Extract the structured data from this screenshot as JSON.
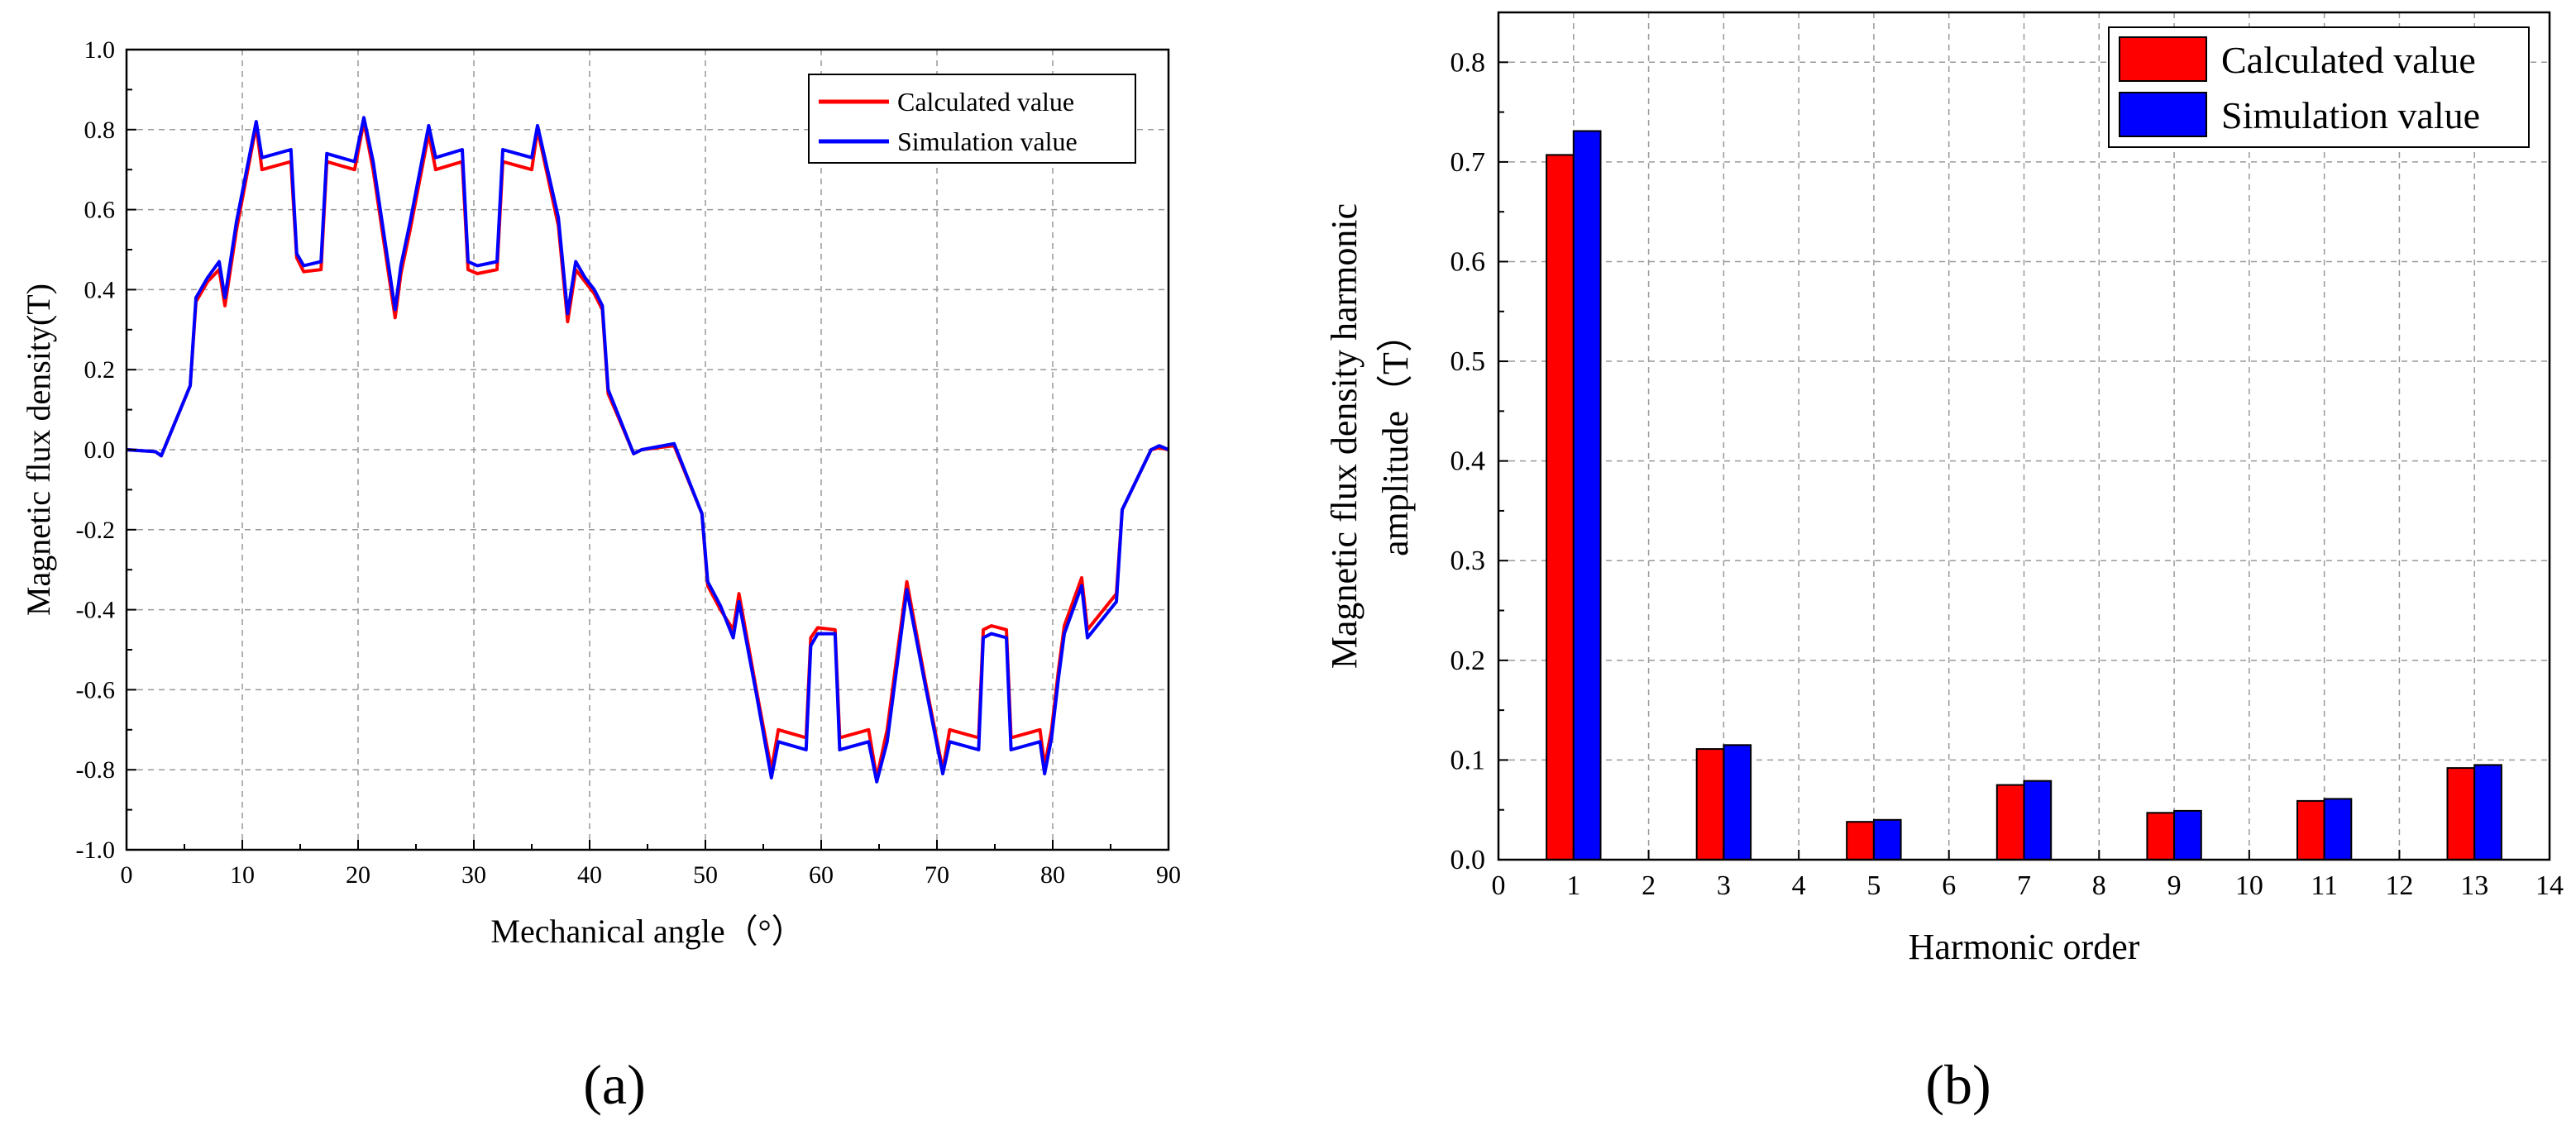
{
  "colors": {
    "calculated": "#ff0000",
    "simulation": "#0000ff",
    "grid": "#999999",
    "axis": "#000000"
  },
  "chart_data": [
    {
      "id": "a",
      "type": "line",
      "panel_label": "(a)",
      "xlabel": "Mechanical angle（°）",
      "ylabel": "Magnetic flux density(T)",
      "xlim": [
        0,
        90
      ],
      "ylim": [
        -1.0,
        1.0
      ],
      "xticks": [
        "0",
        "10",
        "20",
        "30",
        "40",
        "50",
        "60",
        "70",
        "80",
        "90"
      ],
      "yticks": [
        "1.0",
        "0.8",
        "0.6",
        "0.4",
        "0.2",
        "0.0",
        "-0.2",
        "-0.4",
        "-0.6",
        "-0.8",
        "-1.0"
      ],
      "grid": true,
      "legend_position": "top-right",
      "series": [
        {
          "name": "Calculated value",
          "color": "#ff0000",
          "x": [
            0,
            2.5,
            3,
            5.5,
            6,
            7,
            8,
            8.5,
            9.5,
            11.2,
            11.7,
            14.2,
            14.7,
            15.3,
            16.8,
            17.3,
            18.5,
            19.7,
            20.5,
            21.3,
            23.2,
            23.7,
            24.5,
            26.1,
            26.7,
            29,
            29.5,
            30.3,
            32,
            32.5,
            35,
            35.5,
            37.3,
            38.1,
            38.8,
            39.6,
            40.4,
            41.1,
            41.6,
            42.5,
            43.8,
            44.5,
            47.3,
            49.7,
            50.2,
            51.3,
            52.4,
            52.9,
            54.4,
            55.7,
            56.3,
            58.7,
            59.1,
            59.7,
            61.2,
            61.6,
            64.1,
            64.8,
            65.7,
            67.4,
            69,
            70.5,
            71.1,
            73.6,
            74,
            74.7,
            76,
            76.4,
            78.9,
            79.3,
            79.9,
            80.5,
            81,
            82.5,
            83,
            85.5,
            86,
            88.5,
            89.2,
            90
          ],
          "y": [
            0,
            -0.005,
            -0.015,
            0.16,
            0.37,
            0.42,
            0.45,
            0.36,
            0.55,
            0.81,
            0.7,
            0.72,
            0.48,
            0.445,
            0.45,
            0.72,
            0.71,
            0.7,
            0.82,
            0.7,
            0.33,
            0.44,
            0.55,
            0.79,
            0.7,
            0.72,
            0.45,
            0.44,
            0.45,
            0.72,
            0.7,
            0.8,
            0.56,
            0.32,
            0.45,
            0.42,
            0.39,
            0.35,
            0.14,
            0.08,
            -0.01,
            0.0,
            0.01,
            -0.16,
            -0.34,
            -0.4,
            -0.45,
            -0.36,
            -0.6,
            -0.8,
            -0.7,
            -0.72,
            -0.47,
            -0.445,
            -0.45,
            -0.72,
            -0.7,
            -0.82,
            -0.7,
            -0.33,
            -0.58,
            -0.8,
            -0.7,
            -0.72,
            -0.45,
            -0.44,
            -0.45,
            -0.72,
            -0.7,
            -0.79,
            -0.7,
            -0.55,
            -0.44,
            -0.32,
            -0.45,
            -0.36,
            -0.15,
            0.0,
            0.005,
            0
          ]
        },
        {
          "name": "Simulation value",
          "color": "#0000ff",
          "x": [
            0,
            2.5,
            3,
            5.5,
            6,
            7,
            8,
            8.5,
            9.5,
            11.2,
            11.7,
            14.2,
            14.7,
            15.3,
            16.8,
            17.3,
            18.5,
            19.7,
            20.5,
            21.3,
            23.2,
            23.7,
            24.5,
            26.1,
            26.7,
            29,
            29.5,
            30.3,
            32,
            32.5,
            35,
            35.5,
            37.3,
            38.1,
            38.8,
            39.6,
            40.4,
            41.1,
            41.6,
            42.5,
            43.8,
            44.5,
            47.3,
            49.7,
            50.2,
            51.3,
            52.4,
            52.9,
            54.4,
            55.7,
            56.3,
            58.7,
            59.1,
            59.7,
            61.2,
            61.6,
            64.1,
            64.8,
            65.7,
            67.4,
            69,
            70.5,
            71.1,
            73.6,
            74,
            74.7,
            76,
            76.4,
            78.9,
            79.3,
            79.9,
            80.5,
            81,
            82.5,
            83,
            85.5,
            86,
            88.5,
            89.2,
            90
          ],
          "y": [
            0,
            -0.005,
            -0.015,
            0.16,
            0.38,
            0.43,
            0.47,
            0.38,
            0.57,
            0.82,
            0.73,
            0.75,
            0.49,
            0.46,
            0.47,
            0.74,
            0.73,
            0.72,
            0.83,
            0.72,
            0.35,
            0.46,
            0.57,
            0.81,
            0.73,
            0.75,
            0.47,
            0.46,
            0.47,
            0.75,
            0.73,
            0.81,
            0.58,
            0.34,
            0.47,
            0.43,
            0.4,
            0.36,
            0.15,
            0.085,
            -0.01,
            0.0,
            0.015,
            -0.16,
            -0.33,
            -0.39,
            -0.47,
            -0.38,
            -0.61,
            -0.82,
            -0.73,
            -0.75,
            -0.49,
            -0.46,
            -0.46,
            -0.75,
            -0.73,
            -0.83,
            -0.73,
            -0.35,
            -0.59,
            -0.81,
            -0.73,
            -0.75,
            -0.47,
            -0.46,
            -0.47,
            -0.75,
            -0.73,
            -0.81,
            -0.72,
            -0.57,
            -0.46,
            -0.34,
            -0.47,
            -0.38,
            -0.15,
            0.0,
            0.01,
            0
          ]
        }
      ]
    },
    {
      "id": "b",
      "type": "bar",
      "panel_label": "(b)",
      "xlabel": "Harmonic order",
      "ylabel_lines": [
        "Magnetic flux density harmonic",
        "amplitude（T）"
      ],
      "xlim": [
        0,
        14
      ],
      "ylim": [
        0,
        0.85
      ],
      "xticks": [
        "0",
        "1",
        "2",
        "3",
        "4",
        "5",
        "6",
        "7",
        "8",
        "9",
        "10",
        "11",
        "12",
        "13",
        "14"
      ],
      "yticks": [
        "0.0",
        "0.1",
        "0.2",
        "0.3",
        "0.4",
        "0.5",
        "0.6",
        "0.7",
        "0.8"
      ],
      "grid": true,
      "legend_position": "top-right",
      "categories": [
        "1",
        "3",
        "5",
        "7",
        "9",
        "11",
        "13"
      ],
      "series": [
        {
          "name": "Calculated value",
          "color": "#ff0000",
          "values": [
            0.707,
            0.111,
            0.038,
            0.075,
            0.047,
            0.059,
            0.092
          ]
        },
        {
          "name": "Simulation value",
          "color": "#0000ff",
          "values": [
            0.731,
            0.115,
            0.04,
            0.079,
            0.049,
            0.061,
            0.095
          ]
        }
      ]
    }
  ]
}
